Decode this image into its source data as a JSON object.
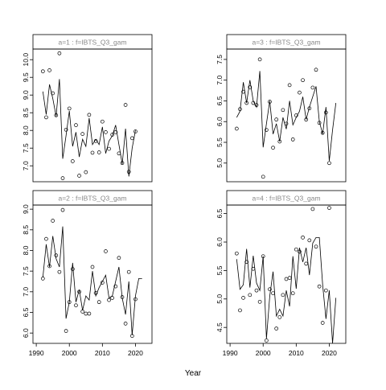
{
  "figure": {
    "xlabel": "Year"
  },
  "chart_data": [
    {
      "type": "line",
      "title": "a=1  :  f=IBTS_Q3_gam",
      "xlabel": "Year",
      "xlim": [
        1989,
        2025
      ],
      "ylim": [
        6.55,
        10.3
      ],
      "yticks": [
        7.0,
        7.5,
        8.0,
        8.5,
        9.0,
        9.5,
        10.0
      ],
      "yticks_text": [
        "7.0",
        "7.5",
        "8.0",
        "8.5",
        "9.0",
        "9.5",
        "10.0"
      ],
      "xticks": [
        1990,
        2000,
        2010,
        2020
      ],
      "xticks_text": [
        "1990",
        "2000",
        "2010",
        "2020"
      ],
      "show_x_ticks": false,
      "series": [
        {
          "kind": "points",
          "x": [
            1992,
            1993,
            1994,
            1995,
            1996,
            1997,
            1998,
            1999,
            2000,
            2001,
            2002,
            2003,
            2004,
            2005,
            2006,
            2007,
            2008,
            2009,
            2010,
            2011,
            2012,
            2013,
            2014,
            2015,
            2016,
            2017,
            2018,
            2019,
            2020
          ],
          "y": [
            9.67,
            8.37,
            9.7,
            9.05,
            8.43,
            10.18,
            6.65,
            8.02,
            8.62,
            7.13,
            8.15,
            6.72,
            7.9,
            6.82,
            8.44,
            7.37,
            7.7,
            7.38,
            8.25,
            7.95,
            7.48,
            7.88,
            7.95,
            7.35,
            7.08,
            8.72,
            6.83,
            7.78,
            7.97
          ]
        },
        {
          "kind": "line",
          "x": [
            1992,
            1993,
            1994,
            1995,
            1996,
            1997,
            1998,
            1999,
            2000,
            2001,
            2002,
            2003,
            2004,
            2005,
            2006,
            2007,
            2008,
            2009,
            2010,
            2011,
            2012,
            2013,
            2014,
            2015,
            2016,
            2017,
            2018,
            2019,
            2020
          ],
          "y": [
            9.1,
            8.45,
            9.3,
            8.9,
            8.4,
            9.45,
            7.2,
            7.85,
            8.55,
            7.55,
            7.95,
            7.25,
            7.75,
            7.55,
            8.35,
            7.6,
            7.75,
            7.6,
            8.1,
            7.35,
            7.7,
            7.85,
            8.15,
            7.6,
            7.05,
            8.05,
            6.7,
            7.5,
            8.0
          ]
        }
      ]
    },
    {
      "type": "line",
      "title": "a=3  :  f=IBTS_Q3_gam",
      "xlabel": "Year",
      "xlim": [
        1989,
        2025
      ],
      "ylim": [
        4.55,
        7.75
      ],
      "yticks": [
        5.0,
        5.5,
        6.0,
        6.5,
        7.0,
        7.5
      ],
      "yticks_text": [
        "5.0",
        "5.5",
        "6.0",
        "6.5",
        "7.0",
        "7.5"
      ],
      "xticks": [
        1990,
        2000,
        2010,
        2020
      ],
      "xticks_text": [
        "1990",
        "2000",
        "2010",
        "2020"
      ],
      "show_x_ticks": false,
      "series": [
        {
          "kind": "points",
          "x": [
            1992,
            1993,
            1994,
            1995,
            1996,
            1997,
            1998,
            1999,
            2000,
            2001,
            2002,
            2003,
            2004,
            2005,
            2006,
            2007,
            2008,
            2009,
            2010,
            2011,
            2012,
            2013,
            2014,
            2015,
            2016,
            2017,
            2018,
            2019,
            2020
          ],
          "y": [
            5.83,
            6.3,
            6.72,
            6.45,
            6.83,
            6.45,
            6.4,
            7.5,
            4.67,
            5.8,
            6.48,
            5.37,
            6.05,
            5.52,
            6.28,
            5.95,
            6.88,
            5.57,
            6.15,
            6.7,
            7.0,
            6.05,
            6.32,
            6.82,
            7.25,
            5.97,
            5.73,
            6.22,
            5.0
          ]
        },
        {
          "kind": "line",
          "x": [
            1992,
            1993,
            1994,
            1995,
            1996,
            1997,
            1998,
            1999,
            2000,
            2001,
            2002,
            2003,
            2004,
            2005,
            2006,
            2007,
            2008,
            2009,
            2010,
            2011,
            2012,
            2013,
            2014,
            2015,
            2016,
            2017,
            2018,
            2019,
            2020,
            2021,
            2022
          ],
          "y": [
            6.1,
            6.25,
            6.95,
            6.45,
            7.0,
            6.5,
            6.35,
            7.22,
            5.38,
            5.95,
            6.5,
            5.7,
            5.95,
            5.52,
            6.1,
            5.82,
            6.5,
            5.92,
            6.1,
            6.25,
            6.6,
            6.05,
            6.35,
            6.6,
            6.85,
            6.0,
            5.7,
            6.35,
            5.05,
            5.8,
            6.45
          ]
        }
      ]
    },
    {
      "type": "line",
      "title": "a=2  :  f=IBTS_Q3_gam",
      "xlabel": "Year",
      "xlim": [
        1989,
        2025
      ],
      "ylim": [
        5.75,
        9.1
      ],
      "yticks": [
        6.0,
        6.5,
        7.0,
        7.5,
        8.0,
        8.5,
        9.0
      ],
      "yticks_text": [
        "6.0",
        "6.5",
        "7.0",
        "7.5",
        "8.0",
        "8.5",
        "9.0"
      ],
      "xticks": [
        1990,
        2000,
        2010,
        2020
      ],
      "xticks_text": [
        "1990",
        "2000",
        "2010",
        "2020"
      ],
      "show_x_ticks": true,
      "series": [
        {
          "kind": "points",
          "x": [
            1992,
            1993,
            1994,
            1995,
            1996,
            1997,
            1998,
            1999,
            2000,
            2001,
            2002,
            2003,
            2004,
            2005,
            2006,
            2007,
            2008,
            2009,
            2010,
            2011,
            2012,
            2013,
            2014,
            2015,
            2016,
            2017,
            2018,
            2019,
            2020
          ],
          "y": [
            7.32,
            8.28,
            7.62,
            8.72,
            7.88,
            7.48,
            8.98,
            6.05,
            6.75,
            7.55,
            6.67,
            7.0,
            6.52,
            6.47,
            6.47,
            7.6,
            6.97,
            6.75,
            7.22,
            7.98,
            6.8,
            6.85,
            7.13,
            7.82,
            6.87,
            6.23,
            7.48,
            5.93,
            6.82
          ]
        },
        {
          "kind": "line",
          "x": [
            1992,
            1993,
            1994,
            1995,
            1996,
            1997,
            1998,
            1999,
            2000,
            2001,
            2002,
            2003,
            2004,
            2005,
            2006,
            2007,
            2008,
            2009,
            2010,
            2011,
            2012,
            2013,
            2014,
            2015,
            2016,
            2017,
            2018,
            2019,
            2020,
            2021,
            2022
          ],
          "y": [
            7.35,
            8.15,
            7.6,
            8.35,
            7.8,
            7.6,
            8.58,
            6.35,
            6.75,
            7.7,
            6.75,
            7.05,
            6.55,
            6.9,
            6.8,
            7.5,
            6.9,
            7.1,
            7.25,
            7.4,
            6.85,
            6.9,
            7.25,
            7.6,
            6.85,
            6.45,
            7.25,
            5.95,
            6.9,
            7.32,
            7.32
          ]
        }
      ]
    },
    {
      "type": "line",
      "title": "a=4  :  f=IBTS_Q3_gam",
      "xlabel": "Year",
      "xlim": [
        1989,
        2025
      ],
      "ylim": [
        4.22,
        6.65
      ],
      "yticks": [
        4.5,
        5.0,
        5.5,
        6.0,
        6.5
      ],
      "yticks_text": [
        "4.5",
        "5.0",
        "5.5",
        "6.0",
        "6.5"
      ],
      "xticks": [
        1990,
        2000,
        2010,
        2020
      ],
      "xticks_text": [
        "1990",
        "2000",
        "2010",
        "2020"
      ],
      "show_x_ticks": true,
      "series": [
        {
          "kind": "points",
          "x": [
            1992,
            1993,
            1994,
            1995,
            1996,
            1997,
            1998,
            1999,
            2000,
            2001,
            2002,
            2003,
            2004,
            2005,
            2006,
            2007,
            2008,
            2009,
            2010,
            2011,
            2012,
            2013,
            2014,
            2015,
            2016,
            2017,
            2018,
            2019,
            2020
          ],
          "y": [
            5.8,
            4.8,
            5.02,
            5.65,
            5.07,
            5.53,
            5.15,
            4.95,
            5.75,
            4.27,
            5.17,
            5.1,
            4.48,
            4.68,
            5.07,
            5.35,
            5.37,
            5.1,
            5.87,
            5.83,
            6.08,
            5.62,
            6.03,
            6.58,
            5.92,
            5.22,
            4.58,
            5.15,
            6.6
          ]
        },
        {
          "kind": "line",
          "x": [
            1992,
            1993,
            1994,
            1995,
            1996,
            1997,
            1998,
            1999,
            2000,
            2001,
            2002,
            2003,
            2004,
            2005,
            2006,
            2007,
            2008,
            2009,
            2010,
            2011,
            2012,
            2013,
            2014,
            2015,
            2016,
            2017,
            2018,
            2019,
            2020,
            2021,
            2022
          ],
          "y": [
            5.7,
            5.17,
            5.25,
            5.88,
            5.2,
            5.76,
            5.28,
            5.15,
            5.75,
            4.3,
            5.05,
            5.48,
            4.7,
            4.82,
            4.7,
            5.15,
            4.87,
            5.75,
            5.18,
            5.9,
            5.65,
            5.9,
            5.42,
            5.98,
            6.08,
            6.08,
            5.25,
            4.65,
            5.15,
            4.22,
            5.02
          ]
        }
      ]
    }
  ]
}
